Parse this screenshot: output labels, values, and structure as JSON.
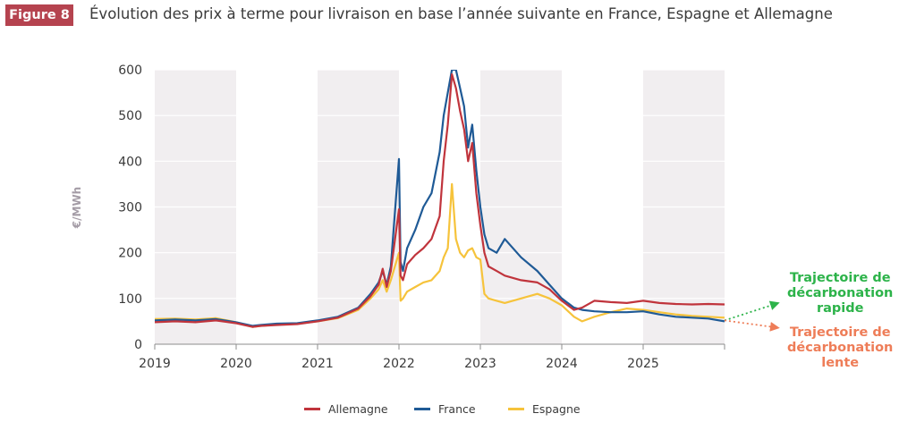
{
  "header": {
    "badge": "Figure 8",
    "title": "Évolution des prix à terme pour livraison en base l’année suivante en France, Espagne et Allemagne"
  },
  "scenarios": {
    "fast": {
      "line1": "Trajectoire de",
      "line2": "décarbonation",
      "line3": "rapide"
    },
    "slow": {
      "line1": "Trajectoire de",
      "line2": "décarbonation",
      "line3": "lente"
    }
  },
  "colors": {
    "allemagne": "#c0343c",
    "france": "#1f5a96",
    "espagne": "#f6c33b",
    "band": "#f1eef0",
    "fast": "#2db34a",
    "slow": "#ee7d58"
  },
  "chart_data": {
    "type": "line",
    "title": "Évolution des prix à terme pour livraison en base l’année suivante en France, Espagne et Allemagne",
    "xlabel": "",
    "ylabel": "€/MWh",
    "ylim": [
      0,
      600
    ],
    "yticks": [
      0,
      100,
      200,
      300,
      400,
      500,
      600
    ],
    "xlim": [
      2019,
      2026
    ],
    "xticks": [
      "2019",
      "2020",
      "2021",
      "2022",
      "2023",
      "2024",
      "2025"
    ],
    "shaded_years": [
      2019,
      2021,
      2023,
      2025
    ],
    "legend": [
      "Allemagne",
      "France",
      "Espagne"
    ],
    "series": [
      {
        "name": "Allemagne",
        "x": [
          2019.0,
          2019.25,
          2019.5,
          2019.75,
          2020.0,
          2020.2,
          2020.3,
          2020.5,
          2020.75,
          2021.0,
          2021.25,
          2021.5,
          2021.65,
          2021.75,
          2021.8,
          2021.85,
          2021.9,
          2022.0,
          2022.02,
          2022.05,
          2022.1,
          2022.2,
          2022.3,
          2022.4,
          2022.5,
          2022.55,
          2022.6,
          2022.65,
          2022.7,
          2022.75,
          2022.8,
          2022.85,
          2022.9,
          2022.95,
          2023.0,
          2023.05,
          2023.1,
          2023.2,
          2023.3,
          2023.5,
          2023.7,
          2023.85,
          2024.0,
          2024.15,
          2024.25,
          2024.4,
          2024.6,
          2024.8,
          2025.0,
          2025.2,
          2025.4,
          2025.6,
          2025.8,
          2026.0
        ],
        "values": [
          48,
          50,
          48,
          52,
          46,
          38,
          40,
          42,
          44,
          50,
          58,
          78,
          105,
          130,
          165,
          125,
          160,
          295,
          150,
          140,
          175,
          195,
          210,
          230,
          280,
          400,
          480,
          590,
          560,
          510,
          470,
          400,
          440,
          330,
          260,
          200,
          170,
          160,
          150,
          140,
          135,
          120,
          95,
          75,
          80,
          95,
          92,
          90,
          95,
          90,
          88,
          87,
          88,
          87
        ]
      },
      {
        "name": "France",
        "x": [
          2019.0,
          2019.25,
          2019.5,
          2019.75,
          2020.0,
          2020.2,
          2020.3,
          2020.5,
          2020.75,
          2021.0,
          2021.25,
          2021.5,
          2021.65,
          2021.75,
          2021.8,
          2021.85,
          2021.9,
          2022.0,
          2022.02,
          2022.05,
          2022.1,
          2022.2,
          2022.3,
          2022.4,
          2022.5,
          2022.55,
          2022.6,
          2022.65,
          2022.7,
          2022.75,
          2022.8,
          2022.85,
          2022.9,
          2022.95,
          2023.0,
          2023.05,
          2023.1,
          2023.2,
          2023.3,
          2023.5,
          2023.7,
          2023.85,
          2024.0,
          2024.15,
          2024.25,
          2024.4,
          2024.6,
          2024.8,
          2025.0,
          2025.2,
          2025.4,
          2025.6,
          2025.8,
          2026.0
        ],
        "values": [
          52,
          54,
          52,
          55,
          48,
          40,
          42,
          45,
          46,
          52,
          60,
          80,
          110,
          135,
          160,
          130,
          170,
          405,
          180,
          160,
          210,
          250,
          300,
          330,
          420,
          500,
          550,
          600,
          600,
          560,
          520,
          430,
          480,
          380,
          300,
          240,
          210,
          200,
          230,
          190,
          160,
          130,
          100,
          80,
          75,
          72,
          70,
          70,
          72,
          65,
          60,
          58,
          56,
          50
        ]
      },
      {
        "name": "Espagne",
        "x": [
          2019.0,
          2019.25,
          2019.5,
          2019.75,
          2020.0,
          2020.2,
          2020.3,
          2020.5,
          2020.75,
          2021.0,
          2021.25,
          2021.5,
          2021.65,
          2021.75,
          2021.8,
          2021.85,
          2021.9,
          2022.0,
          2022.02,
          2022.05,
          2022.1,
          2022.2,
          2022.3,
          2022.4,
          2022.5,
          2022.55,
          2022.6,
          2022.65,
          2022.7,
          2022.75,
          2022.8,
          2022.85,
          2022.9,
          2022.95,
          2023.0,
          2023.05,
          2023.1,
          2023.2,
          2023.3,
          2023.5,
          2023.7,
          2023.85,
          2024.0,
          2024.15,
          2024.25,
          2024.4,
          2024.6,
          2024.8,
          2025.0,
          2025.2,
          2025.4,
          2025.6,
          2025.8,
          2026.0
        ],
        "values": [
          55,
          56,
          54,
          57,
          48,
          38,
          40,
          43,
          45,
          50,
          57,
          75,
          100,
          120,
          140,
          115,
          140,
          200,
          95,
          100,
          115,
          125,
          135,
          140,
          160,
          190,
          210,
          350,
          230,
          200,
          190,
          205,
          210,
          190,
          185,
          110,
          100,
          95,
          90,
          100,
          110,
          100,
          85,
          60,
          50,
          60,
          70,
          78,
          75,
          70,
          65,
          62,
          60,
          58
        ]
      }
    ],
    "projections": [
      {
        "name": "Trajectoire de décarbonation rapide",
        "from": [
          2026.0,
          52
        ],
        "to": [
          2026.7,
          90
        ]
      },
      {
        "name": "Trajectoire de décarbonation lente",
        "from": [
          2026.0,
          52
        ],
        "to": [
          2026.7,
          36
        ]
      }
    ]
  }
}
